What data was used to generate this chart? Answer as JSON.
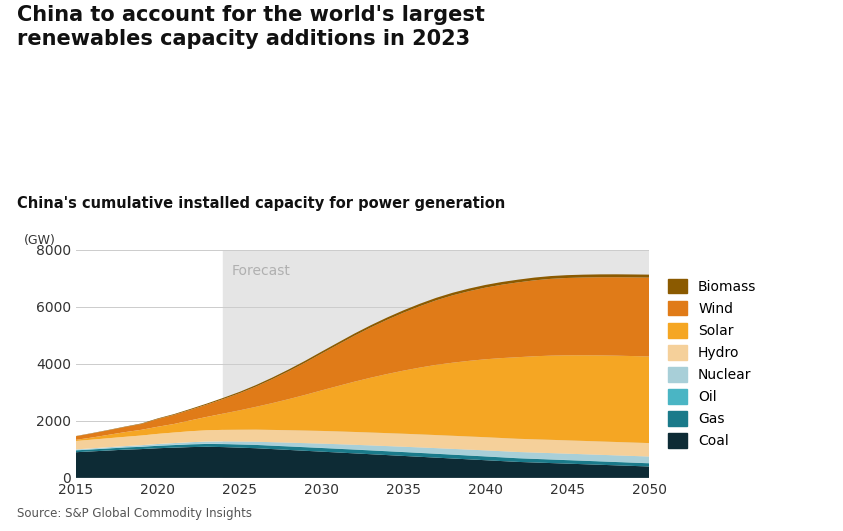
{
  "title_main": "China to account for the world's largest\nrenewables capacity additions in 2023",
  "title_sub": "China's cumulative installed capacity for power generation",
  "ylabel": "(GW)",
  "source": "Source: S&P Global Commodity Insights",
  "forecast_start": 2024,
  "years": [
    2015,
    2016,
    2017,
    2018,
    2019,
    2020,
    2021,
    2022,
    2023,
    2024,
    2025,
    2026,
    2027,
    2028,
    2029,
    2030,
    2031,
    2032,
    2033,
    2034,
    2035,
    2036,
    2037,
    2038,
    2039,
    2040,
    2041,
    2042,
    2043,
    2044,
    2045,
    2046,
    2047,
    2048,
    2049,
    2050
  ],
  "series": {
    "Coal": [
      900,
      930,
      960,
      990,
      1010,
      1040,
      1060,
      1080,
      1090,
      1080,
      1060,
      1040,
      1010,
      980,
      950,
      920,
      890,
      860,
      830,
      800,
      770,
      740,
      710,
      680,
      650,
      620,
      590,
      560,
      540,
      520,
      500,
      480,
      460,
      440,
      420,
      400
    ],
    "Gas": [
      65,
      68,
      72,
      76,
      80,
      85,
      90,
      95,
      100,
      105,
      110,
      115,
      118,
      122,
      125,
      128,
      130,
      132,
      133,
      134,
      135,
      135,
      135,
      134,
      133,
      132,
      130,
      128,
      126,
      124,
      122,
      120,
      118,
      116,
      114,
      112
    ],
    "Oil": [
      8,
      8,
      8,
      8,
      8,
      8,
      8,
      8,
      8,
      8,
      8,
      8,
      8,
      8,
      8,
      8,
      8,
      8,
      8,
      8,
      8,
      8,
      8,
      8,
      8,
      8,
      8,
      8,
      8,
      8,
      8,
      8,
      8,
      8,
      8,
      8
    ],
    "Nuclear": [
      25,
      30,
      35,
      40,
      47,
      55,
      62,
      68,
      75,
      85,
      95,
      105,
      115,
      125,
      135,
      145,
      153,
      160,
      167,
      173,
      179,
      185,
      190,
      195,
      200,
      205,
      208,
      211,
      214,
      217,
      219,
      221,
      223,
      225,
      227,
      229
    ],
    "Hydro": [
      295,
      305,
      315,
      325,
      340,
      355,
      370,
      385,
      395,
      405,
      415,
      423,
      430,
      436,
      441,
      445,
      448,
      450,
      452,
      454,
      456,
      457,
      458,
      459,
      460,
      461,
      462,
      463,
      464,
      465,
      466,
      467,
      468,
      469,
      470,
      471
    ],
    "Solar": [
      40,
      75,
      120,
      165,
      200,
      250,
      300,
      380,
      470,
      570,
      680,
      800,
      940,
      1090,
      1250,
      1420,
      1590,
      1760,
      1920,
      2070,
      2210,
      2340,
      2460,
      2560,
      2650,
      2730,
      2800,
      2860,
      2910,
      2950,
      2980,
      3000,
      3015,
      3025,
      3030,
      3035
    ],
    "Wind": [
      125,
      145,
      160,
      180,
      205,
      270,
      320,
      370,
      430,
      510,
      600,
      710,
      840,
      980,
      1130,
      1290,
      1450,
      1610,
      1760,
      1900,
      2030,
      2150,
      2260,
      2360,
      2440,
      2510,
      2570,
      2620,
      2660,
      2690,
      2710,
      2725,
      2738,
      2748,
      2756,
      2763
    ],
    "Biomass": [
      9,
      11,
      13,
      15,
      18,
      22,
      27,
      32,
      37,
      42,
      47,
      52,
      56,
      60,
      64,
      68,
      71,
      74,
      77,
      80,
      83,
      86,
      88,
      90,
      92,
      94,
      95,
      96,
      97,
      98,
      99,
      100,
      101,
      102,
      103,
      104
    ]
  },
  "colors": {
    "Coal": "#0d2b35",
    "Gas": "#1a7a8a",
    "Oil": "#4ab5c4",
    "Nuclear": "#a8cfd8",
    "Hydro": "#f5d09a",
    "Solar": "#f5a623",
    "Wind": "#e07b18",
    "Biomass": "#8b5a00"
  },
  "ylim": [
    0,
    8000
  ],
  "yticks": [
    0,
    2000,
    4000,
    6000,
    8000
  ],
  "xticks": [
    2015,
    2020,
    2025,
    2030,
    2035,
    2040,
    2045,
    2050
  ],
  "forecast_label": "Forecast",
  "forecast_bg_color": "#e5e5e5",
  "background_color": "#ffffff",
  "grid_color": "#cccccc"
}
